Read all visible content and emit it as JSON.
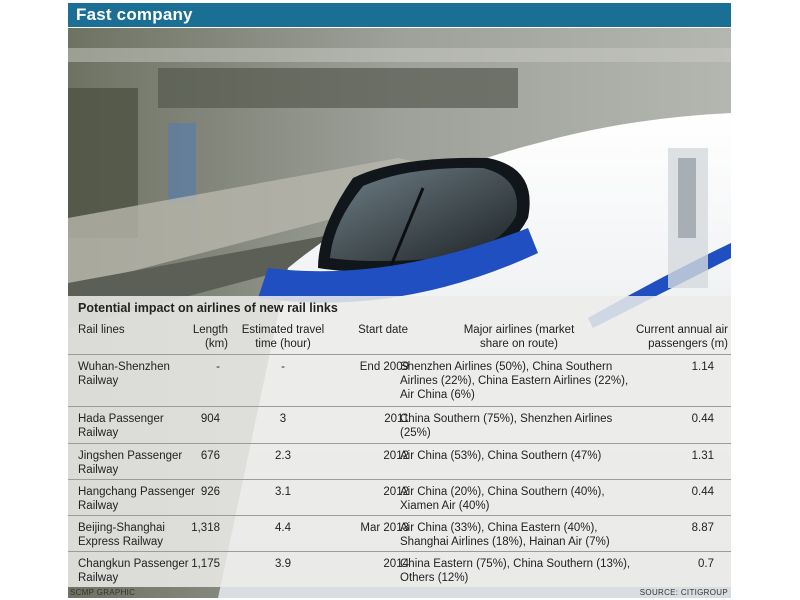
{
  "header": {
    "title": "Fast company"
  },
  "table": {
    "title": "Potential impact on airlines of new rail links",
    "columns": {
      "rail_lines": "Rail lines",
      "length": "Length (km)",
      "travel_time": "Estimated travel time (hour)",
      "start_date": "Start date",
      "airlines": "Major airlines (market share on route)",
      "passengers": "Current annual air passengers (m)"
    },
    "rows": [
      {
        "rail_line": "Wuhan-Shenzhen Railway",
        "length": "-",
        "travel_time": "-",
        "start_date": "End 2009",
        "airlines": "Shenzhen Airlines (50%), China Southern Airlines (22%), China Eastern Airlines (22%), Air China (6%)",
        "passengers": "1.14"
      },
      {
        "rail_line": "Hada Passenger Railway",
        "length": "904",
        "travel_time": "3",
        "start_date": "2011",
        "airlines": "China Southern (75%), Shenzhen Airlines (25%)",
        "passengers": "0.44"
      },
      {
        "rail_line": "Jingshen Passenger Railway",
        "length": "676",
        "travel_time": "2.3",
        "start_date": "2012",
        "airlines": "Air China (53%), China Southern (47%)",
        "passengers": "1.31"
      },
      {
        "rail_line": "Hangchang Passenger Railway",
        "length": "926",
        "travel_time": "3.1",
        "start_date": "2012",
        "airlines": "Air China (20%), China Southern (40%), Xiamen Air (40%)",
        "passengers": "0.44"
      },
      {
        "rail_line": "Beijing-Shanghai Express Railway",
        "length": "1,318",
        "travel_time": "4.4",
        "start_date": "Mar 2013",
        "airlines": "Air China (33%), China Eastern (40%), Shanghai Airlines (18%), Hainan Air (7%)",
        "passengers": "8.87"
      },
      {
        "rail_line": "Changkun Passenger Railway",
        "length": "1,175",
        "travel_time": "3.9",
        "start_date": "2014",
        "airlines": "China Eastern (75%), China Southern (13%), Others (12%)",
        "passengers": "0.7"
      }
    ]
  },
  "footer": {
    "credit": "SCMP GRAPHIC",
    "source": "SOURCE: CITIGROUP"
  },
  "colors": {
    "header_bar": "#1b6e94",
    "train_body": "#f4f6f8",
    "train_stripe": "#1f4fc0"
  }
}
